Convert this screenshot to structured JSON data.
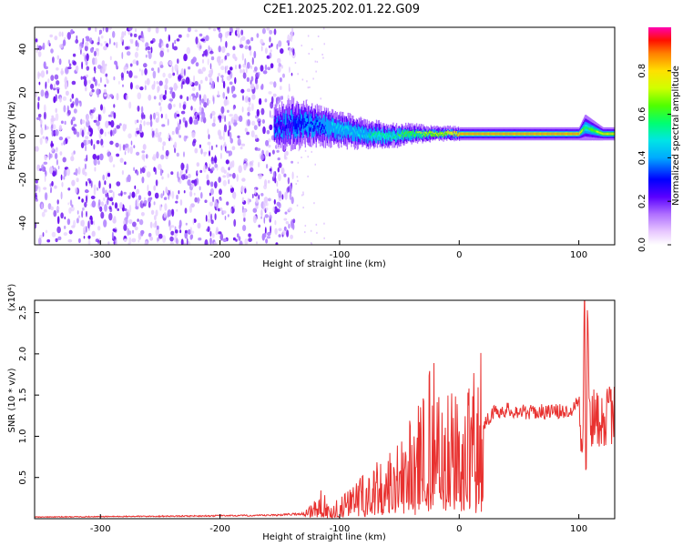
{
  "title": "C2E1.2025.202.01.22.G09",
  "chart_data": [
    {
      "type": "heatmap",
      "xlabel": "Height of straight line (km)",
      "ylabel": "Frequency (Hz)",
      "xlim": [
        -355,
        130
      ],
      "ylim": [
        -50,
        50
      ],
      "xticks": [
        -300,
        -200,
        -100,
        0,
        100
      ],
      "yticks": [
        -40,
        -20,
        0,
        20,
        40
      ],
      "xticklabels": [
        "-300",
        "-200",
        "-100",
        "0",
        "100"
      ],
      "yticklabels": [
        "-40",
        "-20",
        "0",
        "20",
        "40"
      ],
      "colorbar": {
        "label": "Normalized spectral amplitude",
        "range": [
          0,
          1
        ],
        "ticks": [
          0.0,
          0.2,
          0.4,
          0.6,
          0.8
        ],
        "ticklabels": [
          "0.0",
          "0.2",
          "0.4",
          "0.6",
          "0.8"
        ],
        "colormap": [
          "#ffffff",
          "#f0d8ff",
          "#c890ff",
          "#8a2be2",
          "#4a00ff",
          "#0000ff",
          "#00aaff",
          "#00e5e5",
          "#00ff80",
          "#40ff00",
          "#c8ff00",
          "#ffff00",
          "#ffaa00",
          "#ff5000",
          "#ff0000",
          "#ff00a0"
        ]
      },
      "noise_region_x": [
        -355,
        -138
      ],
      "signal": {
        "x": [
          -155,
          -140,
          -120,
          -100,
          -80,
          -60,
          -40,
          -20,
          0,
          20,
          40,
          60,
          80,
          100,
          105,
          120,
          130
        ],
        "center_hz": [
          4,
          6,
          5,
          3,
          1,
          0,
          1,
          1,
          1,
          1,
          1,
          1,
          1,
          1,
          4,
          1,
          1
        ],
        "halfwidth_hz": [
          8,
          10,
          8,
          7,
          6,
          5,
          4,
          3,
          3,
          3,
          3,
          3,
          3,
          3,
          6,
          3,
          3
        ],
        "peak_amplitude": [
          0.3,
          0.35,
          0.45,
          0.5,
          0.55,
          0.6,
          0.7,
          0.8,
          0.9,
          0.9,
          0.9,
          0.9,
          0.9,
          0.9,
          0.6,
          0.8,
          0.8
        ]
      }
    },
    {
      "type": "line",
      "xlabel": "Height of straight line (km)",
      "ylabel": "SNR (10 * v/v)",
      "multiplier_label": "(x10⁴)",
      "xlim": [
        -355,
        130
      ],
      "ylim": [
        0,
        26500
      ],
      "xticks": [
        -300,
        -200,
        -100,
        0,
        100
      ],
      "yticks": [
        5000,
        10000,
        15000,
        20000,
        25000
      ],
      "xticklabels": [
        "-300",
        "-200",
        "-100",
        "0",
        "100"
      ],
      "yticklabels": [
        "0.5",
        "1.0",
        "1.5",
        "2.0",
        "2.5"
      ],
      "color": "#e8312f",
      "series": [
        {
          "x": [
            -355,
            -300,
            -250,
            -200,
            -160,
            -130,
            -118,
            -115,
            -110,
            -100,
            -90,
            -80,
            -70,
            -60,
            -50,
            -40,
            -30,
            -20,
            -15,
            -10,
            0,
            10,
            20,
            30,
            40,
            50,
            60,
            70,
            80,
            90,
            95,
            100,
            103,
            104,
            105,
            106,
            107,
            110,
            120,
            130
          ],
          "y": [
            200,
            250,
            300,
            350,
            400,
            600,
            1300,
            2200,
            800,
            1300,
            2000,
            3000,
            3500,
            4500,
            5500,
            6500,
            8500,
            10000,
            13500,
            8000,
            7500,
            9500,
            11500,
            13000,
            13200,
            13000,
            12900,
            13000,
            13000,
            13000,
            13500,
            14500,
            9000,
            16000,
            25500,
            1000,
            22000,
            12000,
            12500,
            12500
          ]
        }
      ]
    }
  ]
}
